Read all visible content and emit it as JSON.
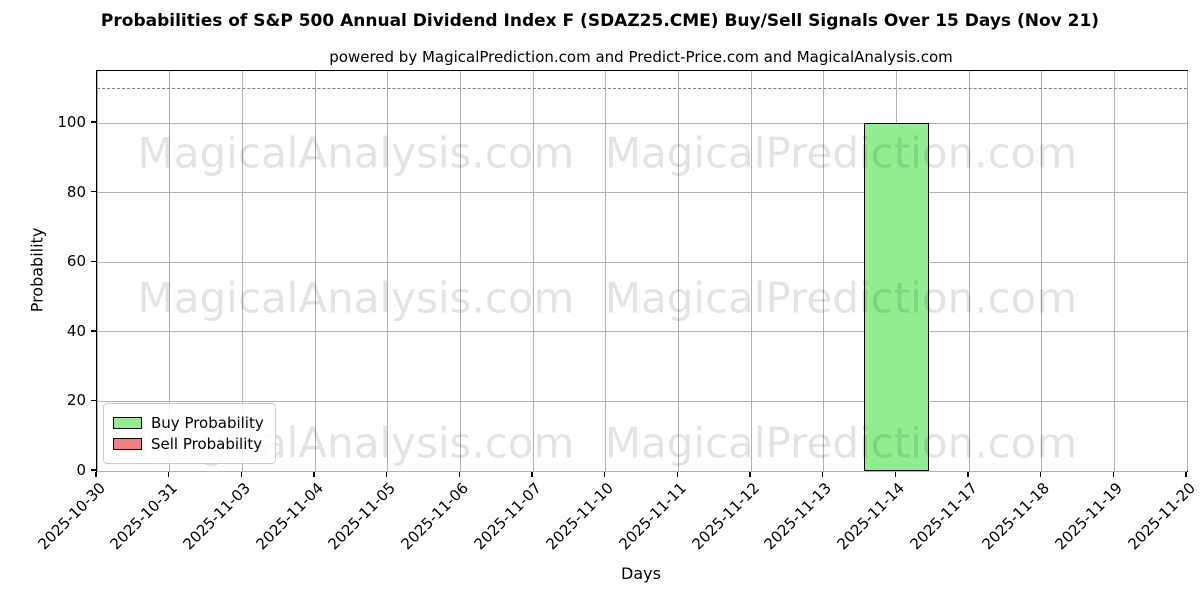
{
  "chart_data": {
    "type": "bar",
    "title": "Probabilities of S&P 500 Annual Dividend Index F (SDAZ25.CME) Buy/Sell Signals Over 15 Days (Nov 21)",
    "subtitle": "powered by MagicalPrediction.com and Predict-Price.com and MagicalAnalysis.com",
    "xlabel": "Days",
    "ylabel": "Probability",
    "categories": [
      "2025-10-30",
      "2025-10-31",
      "2025-11-03",
      "2025-11-04",
      "2025-11-05",
      "2025-11-06",
      "2025-11-07",
      "2025-11-10",
      "2025-11-11",
      "2025-11-12",
      "2025-11-13",
      "2025-11-14",
      "2025-11-17",
      "2025-11-18",
      "2025-11-19",
      "2025-11-20"
    ],
    "series": [
      {
        "name": "Buy Probability",
        "color": "#90EE90",
        "edge_color": "#000000",
        "values": [
          0,
          0,
          0,
          0,
          0,
          0,
          0,
          0,
          0,
          0,
          0,
          100,
          0,
          0,
          0,
          0
        ]
      },
      {
        "name": "Sell Probability",
        "color": "#F08080",
        "edge_color": "#000000",
        "values": [
          0,
          0,
          0,
          0,
          0,
          0,
          0,
          0,
          0,
          0,
          0,
          0,
          0,
          0,
          0,
          0
        ]
      }
    ],
    "ylim": [
      0,
      115
    ],
    "yticks": [
      0,
      20,
      40,
      60,
      80,
      100
    ],
    "dashed_line_y": 110,
    "grid": true,
    "legend_position": "lower left",
    "bar_width_fraction": 0.9,
    "watermarks": [
      "MagicalAnalysis.com",
      "MagicalPrediction.com"
    ],
    "colors": {
      "grid": "#b0b0b0",
      "dashed_line": "#808080",
      "axis_border": "#000000",
      "background": "#ffffff"
    }
  }
}
